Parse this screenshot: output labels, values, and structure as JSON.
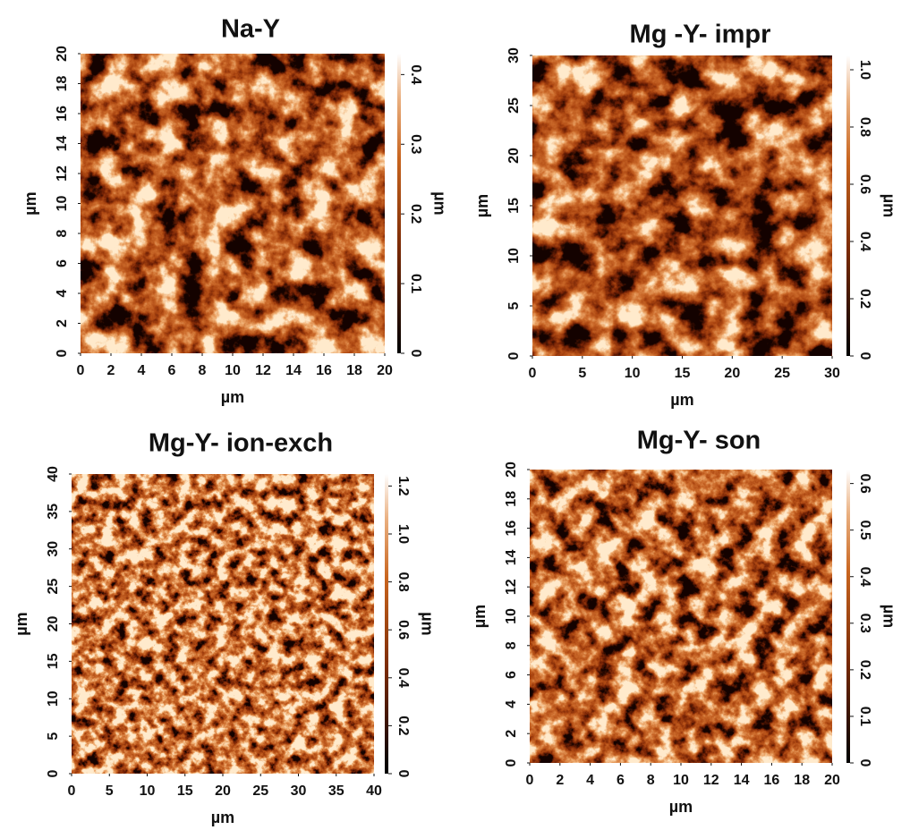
{
  "chart_data": [
    {
      "type": "image",
      "title": "Na-Y",
      "xlabel": "µm",
      "ylabel": "µm",
      "zlabel": "µm",
      "xlim": [
        0,
        20
      ],
      "xticks": [
        0,
        2,
        4,
        6,
        8,
        10,
        12,
        14,
        16,
        18,
        20
      ],
      "ylim": [
        0,
        20
      ],
      "yticks": [
        0,
        2,
        4,
        6,
        8,
        10,
        12,
        14,
        16,
        18,
        20
      ],
      "zlim": [
        0,
        0.43
      ],
      "zticks": [
        0,
        0.1,
        0.2,
        0.3,
        0.4
      ]
    },
    {
      "type": "image",
      "title": "Mg -Y- impr",
      "xlabel": "µm",
      "ylabel": "µm",
      "zlabel": "µm",
      "xlim": [
        0,
        30
      ],
      "xticks": [
        0,
        5,
        10,
        15,
        20,
        25,
        30
      ],
      "ylim": [
        0,
        30
      ],
      "yticks": [
        0,
        5,
        10,
        15,
        20,
        25,
        30
      ],
      "zlim": [
        0,
        1.05
      ],
      "zticks": [
        0,
        0.2,
        0.4,
        0.6,
        0.8,
        {
          "value": 1,
          "label": "1.0"
        }
      ]
    },
    {
      "type": "image",
      "title": "Mg-Y- ion-exch",
      "xlabel": "µm",
      "ylabel": "µm",
      "zlabel": "µm",
      "xlim": [
        0,
        40
      ],
      "xticks": [
        0,
        5,
        10,
        15,
        20,
        25,
        30,
        35,
        40
      ],
      "ylim": [
        0,
        40
      ],
      "yticks": [
        0,
        5,
        10,
        15,
        20,
        25,
        30,
        35,
        40
      ],
      "zlim": [
        0,
        1.25
      ],
      "zticks": [
        0,
        0.2,
        0.4,
        0.6,
        0.8,
        {
          "value": 1,
          "label": "1.0"
        },
        1.2
      ]
    },
    {
      "type": "image",
      "title": "Mg-Y- son",
      "xlabel": "µm",
      "ylabel": "µm",
      "zlabel": "µm",
      "xlim": [
        0,
        20
      ],
      "xticks": [
        0,
        2,
        4,
        6,
        8,
        10,
        12,
        14,
        16,
        18,
        20
      ],
      "ylim": [
        0,
        20
      ],
      "yticks": [
        0,
        2,
        4,
        6,
        8,
        10,
        12,
        14,
        16,
        18,
        20
      ],
      "zlim": [
        0,
        0.63
      ],
      "zticks": [
        0,
        0.1,
        0.2,
        0.3,
        0.4,
        0.5,
        0.6
      ]
    }
  ]
}
